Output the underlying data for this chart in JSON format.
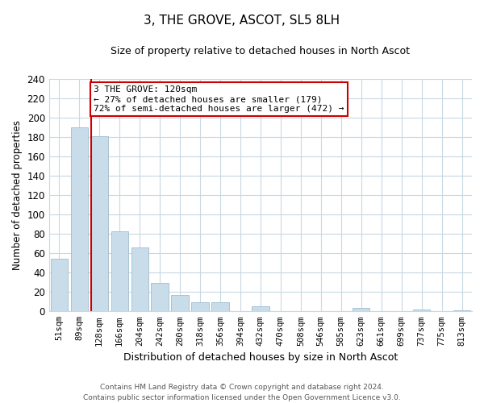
{
  "title": "3, THE GROVE, ASCOT, SL5 8LH",
  "subtitle": "Size of property relative to detached houses in North Ascot",
  "xlabel": "Distribution of detached houses by size in North Ascot",
  "ylabel": "Number of detached properties",
  "categories": [
    "51sqm",
    "89sqm",
    "128sqm",
    "166sqm",
    "204sqm",
    "242sqm",
    "280sqm",
    "318sqm",
    "356sqm",
    "394sqm",
    "432sqm",
    "470sqm",
    "508sqm",
    "546sqm",
    "585sqm",
    "623sqm",
    "661sqm",
    "699sqm",
    "737sqm",
    "775sqm",
    "813sqm"
  ],
  "values": [
    54,
    190,
    181,
    83,
    66,
    29,
    17,
    9,
    9,
    0,
    5,
    0,
    0,
    0,
    0,
    4,
    0,
    0,
    2,
    0,
    1
  ],
  "bar_color": "#c9dcea",
  "bar_edge_color": "#9fbcce",
  "highlight_index": 2,
  "highlight_line_color": "#cc0000",
  "ylim": [
    0,
    240
  ],
  "yticks": [
    0,
    20,
    40,
    60,
    80,
    100,
    120,
    140,
    160,
    180,
    200,
    220,
    240
  ],
  "annotation_title": "3 THE GROVE: 120sqm",
  "annotation_line1": "← 27% of detached houses are smaller (179)",
  "annotation_line2": "72% of semi-detached houses are larger (472) →",
  "annotation_box_color": "#ffffff",
  "annotation_box_edge": "#cc0000",
  "footer_line1": "Contains HM Land Registry data © Crown copyright and database right 2024.",
  "footer_line2": "Contains public sector information licensed under the Open Government Licence v3.0.",
  "background_color": "#ffffff",
  "grid_color": "#c8d8e4"
}
